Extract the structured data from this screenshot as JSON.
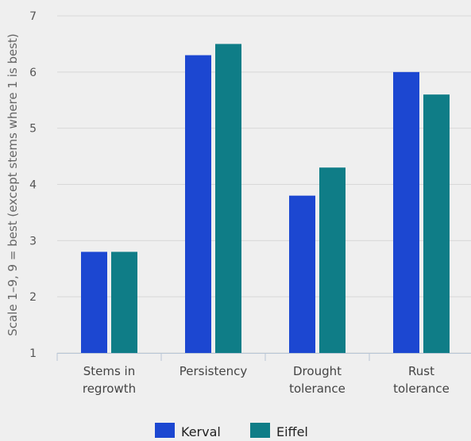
{
  "chart_data": {
    "type": "bar",
    "categories": [
      [
        "Stems in",
        "regrowth"
      ],
      [
        "Persistency"
      ],
      [
        "Drought",
        "tolerance"
      ],
      [
        "Rust",
        "tolerance"
      ]
    ],
    "series": [
      {
        "name": "Kerval",
        "color": "#1c47d1",
        "values": [
          2.8,
          6.3,
          3.8,
          6.0
        ]
      },
      {
        "name": "Eiffel",
        "color": "#0f7d87",
        "values": [
          2.8,
          6.5,
          4.3,
          5.6
        ]
      }
    ],
    "ylabel": "Scale 1–9, 9 = best (except stems where 1 is best)",
    "ylim": [
      1,
      7
    ],
    "yticks": [
      1,
      2,
      3,
      4,
      5,
      6,
      7
    ],
    "grid": true,
    "legend_position": "bottom-center"
  }
}
